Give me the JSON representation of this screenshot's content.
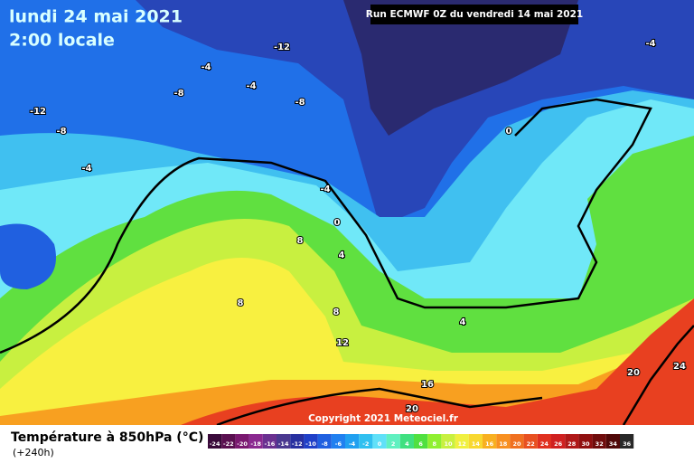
{
  "header": {
    "date": "lundi 24 mai 2021",
    "time": "2:00 locale",
    "run": "Run ECMWF 0Z du vendredi 14 mai 2021"
  },
  "map": {
    "contour_labels": [
      -12,
      -4,
      -4,
      -8,
      -8,
      -12,
      -8,
      -4,
      -4,
      0,
      -4,
      0,
      8,
      4,
      8,
      8,
      4,
      12,
      16,
      20,
      20,
      24
    ],
    "copyright": "Copyright 2021 Meteociel.fr"
  },
  "legend": {
    "title": "Température à 850hPa (°C)",
    "lead": "(+240h)",
    "ticks": [
      -24,
      -22,
      -20,
      -18,
      -16,
      -14,
      -12,
      -10,
      -8,
      -6,
      -4,
      -2,
      0,
      2,
      4,
      6,
      8,
      10,
      12,
      14,
      16,
      18,
      20,
      22,
      24,
      26,
      28,
      30,
      32,
      34,
      36
    ],
    "colors": [
      "#3a0a3a",
      "#5a1050",
      "#7a1870",
      "#8a2890",
      "#6a3090",
      "#4a3890",
      "#2830a0",
      "#2040c8",
      "#2060e0",
      "#2080f0",
      "#20a0f0",
      "#30c0f0",
      "#60e0f8",
      "#60f0c0",
      "#40e080",
      "#50e040",
      "#90f030",
      "#c8f040",
      "#f0f040",
      "#f8d830",
      "#f8b020",
      "#f89020",
      "#f07020",
      "#e85020",
      "#e03020",
      "#d02020",
      "#b01818",
      "#901010",
      "#700c0c",
      "#500808",
      "#282828"
    ]
  }
}
